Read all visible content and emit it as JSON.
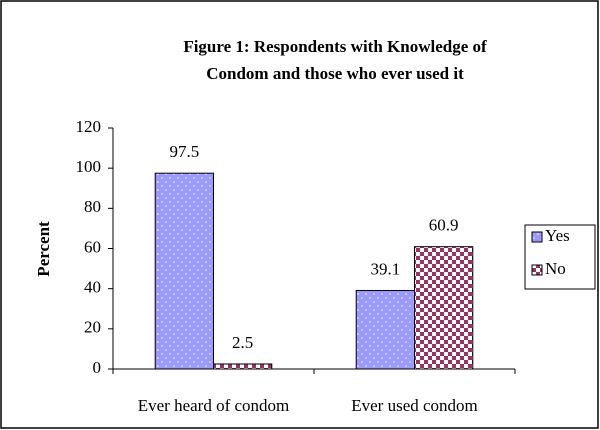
{
  "chart_data": {
    "type": "bar",
    "title": [
      "Figure 1: Respondents with Knowledge of",
      "Condom and those who ever used it"
    ],
    "y_label": "Percent",
    "categories": [
      "Ever heard of condom",
      "Ever used condom"
    ],
    "series": [
      {
        "name": "Yes",
        "color": "#9999ff",
        "values": [
          97.5,
          39.1
        ]
      },
      {
        "name": "No",
        "color": "#993366",
        "values": [
          2.5,
          60.9
        ]
      }
    ],
    "ylim": [
      0,
      120
    ],
    "yticks": [
      0,
      20,
      40,
      60,
      80,
      100,
      120
    ],
    "legend": "right",
    "grid": false
  }
}
